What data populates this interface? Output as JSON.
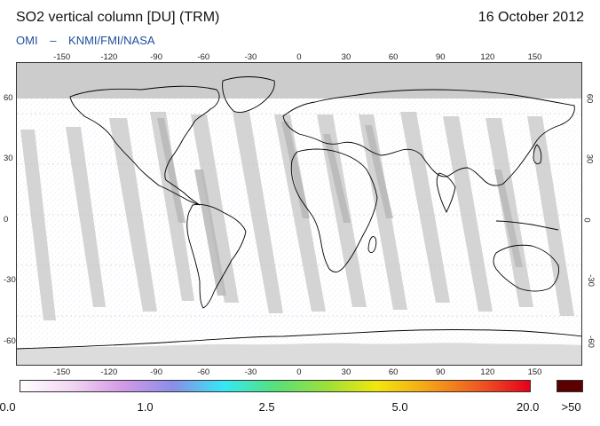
{
  "header": {
    "title": "SO2 vertical column [DU] (TRM)",
    "date": "16 October 2012",
    "credit_instrument": "OMI",
    "credit_dash": "–",
    "credit_agencies": "KNMI/FMI/NASA"
  },
  "map": {
    "projection": "equirectangular",
    "grid": "on",
    "lon_ticks": [
      "-150",
      "-120",
      "-90",
      "-60",
      "-30",
      "0",
      "30",
      "60",
      "90",
      "120",
      "150"
    ],
    "lat_ticks": [
      "60",
      "30",
      "0",
      "-30",
      "-60"
    ],
    "colors": {
      "no_data": "#cccccc",
      "land_outline": "#000000",
      "orbit_gap": "#d2d2d2"
    }
  },
  "colorbar": {
    "tick_labels": [
      "0.0",
      "1.0",
      "2.5",
      "5.0",
      "20.0",
      ">50"
    ],
    "stops": [
      "#ffffff",
      "#f2d6f2",
      "#d39ae6",
      "#8a8ee8",
      "#35e8f5",
      "#57e07a",
      "#9be03a",
      "#f3e60e",
      "#f4a418",
      "#ef5a22",
      "#e6001b"
    ],
    "over_color": "#5a0000"
  }
}
